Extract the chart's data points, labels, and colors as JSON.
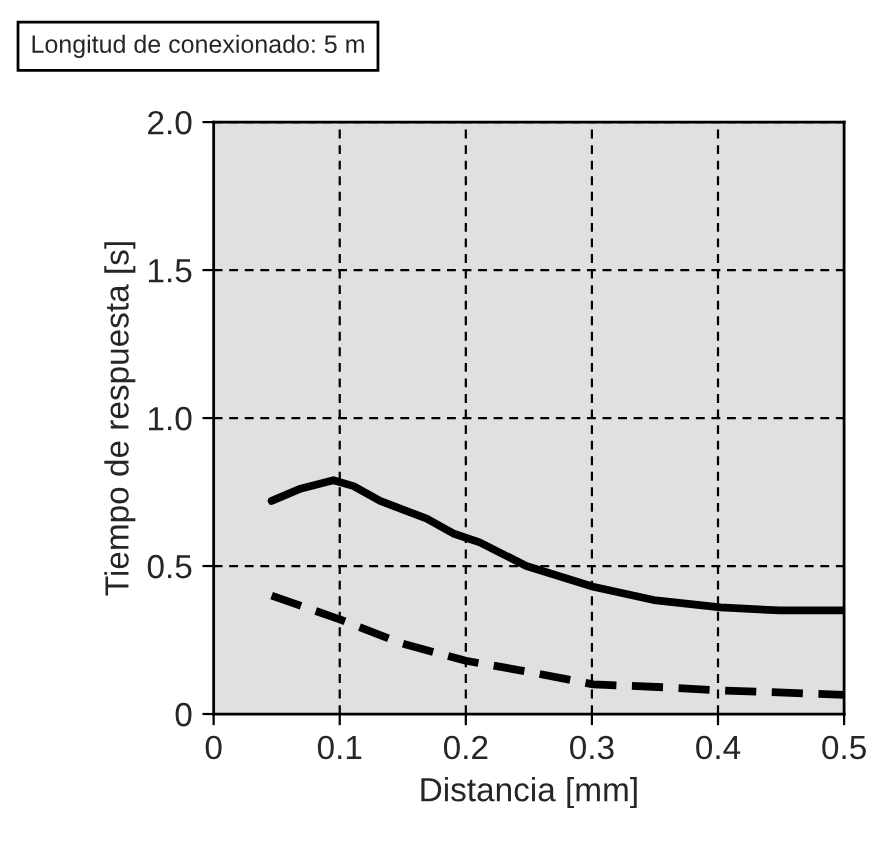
{
  "chart_data": {
    "type": "line",
    "title": "Longitud de conexionado: 5 m",
    "xlabel": "Distancia [mm]",
    "ylabel": "Tiempo de respuesta [s]",
    "xlim": [
      0,
      0.5
    ],
    "xticks": [
      0,
      0.1,
      0.2,
      0.3,
      0.4,
      0.5
    ],
    "ylim": [
      0,
      2.0
    ],
    "yticks": [
      {
        "value": 0,
        "label": "0"
      },
      {
        "value": 0.5,
        "label": "0.5"
      },
      {
        "value": 1.0,
        "label": "1.0"
      },
      {
        "value": 1.5,
        "label": "1.5"
      },
      {
        "value": 2.0,
        "label": "2.0"
      }
    ],
    "grid": true,
    "legend": false,
    "marker": "none",
    "series": [
      {
        "color": "#000000",
        "line_style": "solid",
        "x": [
          0.046,
          0.068,
          0.095,
          0.111,
          0.132,
          0.169,
          0.19,
          0.211,
          0.248,
          0.301,
          0.349,
          0.402,
          0.449,
          0.5
        ],
        "values": [
          0.72,
          0.76,
          0.79,
          0.77,
          0.72,
          0.66,
          0.61,
          0.58,
          0.5,
          0.43,
          0.385,
          0.36,
          0.35,
          0.35
        ]
      },
      {
        "color": "#000000",
        "line_style": "dashed",
        "x": [
          0.046,
          0.1,
          0.148,
          0.2,
          0.253,
          0.301,
          0.359,
          0.4,
          0.5
        ],
        "values": [
          0.4,
          0.32,
          0.24,
          0.18,
          0.14,
          0.1,
          0.09,
          0.08,
          0.065
        ]
      }
    ]
  }
}
